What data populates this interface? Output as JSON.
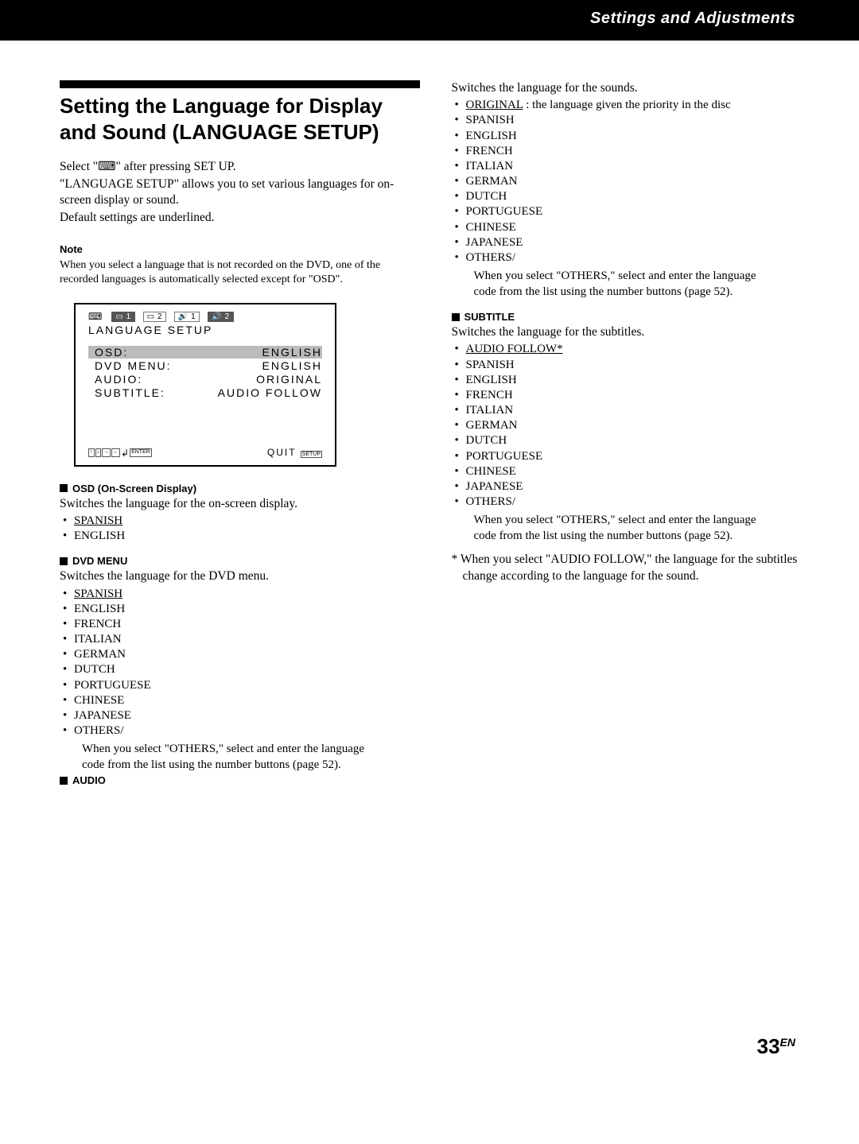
{
  "header": {
    "breadcrumb": "Settings and Adjustments"
  },
  "title": "Setting the Language for Display and Sound (LANGUAGE SETUP)",
  "intro": {
    "l1": "Select \"⌨\" after pressing SET UP.",
    "l2": "\"LANGUAGE SETUP\" allows you to set various languages for on-screen display or sound.",
    "l3": "Default settings are underlined."
  },
  "note": {
    "label": "Note",
    "body": "When you select a language that is not recorded on the DVD, one of the recorded languages is automatically selected except for \"OSD\"."
  },
  "osd_panel": {
    "tabs": [
      "1",
      "2",
      "1",
      "2"
    ],
    "title": "LANGUAGE SETUP",
    "rows": [
      {
        "k": "OSD:",
        "v": "ENGLISH",
        "sel": true
      },
      {
        "k": "DVD MENU:",
        "v": "ENGLISH",
        "sel": false
      },
      {
        "k": "AUDIO:",
        "v": "ORIGINAL",
        "sel": false
      },
      {
        "k": "SUBTITLE:",
        "v": "AUDIO FOLLOW",
        "sel": false
      }
    ],
    "footer_keys": [
      "↑",
      "↓",
      "→",
      "←",
      "↲",
      "ENTER"
    ],
    "footer_quit": "QUIT",
    "footer_quit_key": "SETUP"
  },
  "sections": {
    "osd": {
      "head": "OSD (On-Screen Display)",
      "desc": "Switches the language for the on-screen display.",
      "items": [
        {
          "t": "SPANISH",
          "u": true
        },
        {
          "t": "ENGLISH"
        }
      ]
    },
    "dvd_menu": {
      "head": "DVD MENU",
      "desc": "Switches the language for the DVD menu.",
      "items": [
        {
          "t": "SPANISH",
          "u": true
        },
        {
          "t": "ENGLISH"
        },
        {
          "t": "FRENCH"
        },
        {
          "t": "ITALIAN"
        },
        {
          "t": "GERMAN"
        },
        {
          "t": "DUTCH"
        },
        {
          "t": "PORTUGUESE"
        },
        {
          "t": "CHINESE"
        },
        {
          "t": "JAPANESE"
        },
        {
          "t": "OTHERS/"
        }
      ],
      "others_note": "When you select \"OTHERS,\" select and enter the language code from the list using the number buttons (page 52)."
    },
    "audio": {
      "head": "AUDIO",
      "desc": "Switches the language for the sounds.",
      "first_item": "ORIGINAL",
      "first_suffix": " : the language given the priority in the disc",
      "items": [
        {
          "t": "SPANISH"
        },
        {
          "t": "ENGLISH"
        },
        {
          "t": "FRENCH"
        },
        {
          "t": "ITALIAN"
        },
        {
          "t": "GERMAN"
        },
        {
          "t": "DUTCH"
        },
        {
          "t": "PORTUGUESE"
        },
        {
          "t": "CHINESE"
        },
        {
          "t": "JAPANESE"
        },
        {
          "t": "OTHERS/"
        }
      ],
      "others_note": "When you select \"OTHERS,\" select and enter the language code from the list using the number buttons (page 52)."
    },
    "subtitle": {
      "head": "SUBTITLE",
      "desc": "Switches the language for the subtitles.",
      "items": [
        {
          "t": "AUDIO FOLLOW*",
          "u": true
        },
        {
          "t": "SPANISH"
        },
        {
          "t": "ENGLISH"
        },
        {
          "t": "FRENCH"
        },
        {
          "t": "ITALIAN"
        },
        {
          "t": "GERMAN"
        },
        {
          "t": "DUTCH"
        },
        {
          "t": "PORTUGUESE"
        },
        {
          "t": "CHINESE"
        },
        {
          "t": "JAPANESE"
        },
        {
          "t": "OTHERS/"
        }
      ],
      "others_note": "When you select \"OTHERS,\" select and enter the language code from the list using the number buttons (page 52)."
    }
  },
  "footnote": "* When you select \"AUDIO FOLLOW,\" the language for the subtitles change according to the language for the sound.",
  "page_number": "33",
  "page_suffix": "EN"
}
